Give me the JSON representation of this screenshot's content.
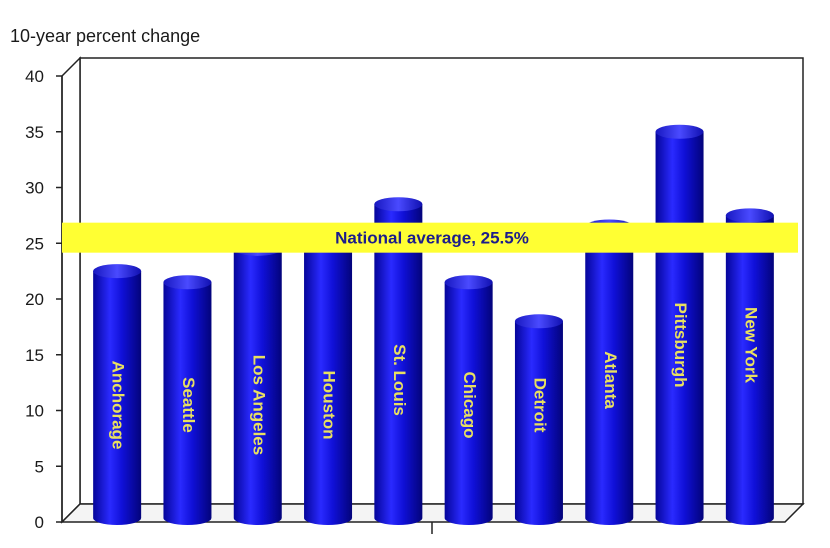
{
  "chart_data": {
    "type": "bar",
    "ylabel": "10-year percent change",
    "ylim": [
      0,
      40
    ],
    "yticks": [
      "0",
      "5",
      "10",
      "15",
      "20",
      "25",
      "30",
      "35",
      "40"
    ],
    "categories": [
      "Anchorage",
      "Seattle",
      "Los Angeles",
      "Houston",
      "St. Louis",
      "Chicago",
      "Detroit",
      "Atlanta",
      "Pittsburgh",
      "New York"
    ],
    "values": [
      22.5,
      21.5,
      24.5,
      25.0,
      28.5,
      21.5,
      18.0,
      26.5,
      35.0,
      27.5
    ],
    "reference_line": {
      "value": 25.5,
      "label": "National average, 25.5%"
    },
    "grid": false,
    "legend": "none",
    "colors": {
      "bar": "#1010d8",
      "reference_band": "#ffff33",
      "bar_label": "#e8e060"
    }
  }
}
